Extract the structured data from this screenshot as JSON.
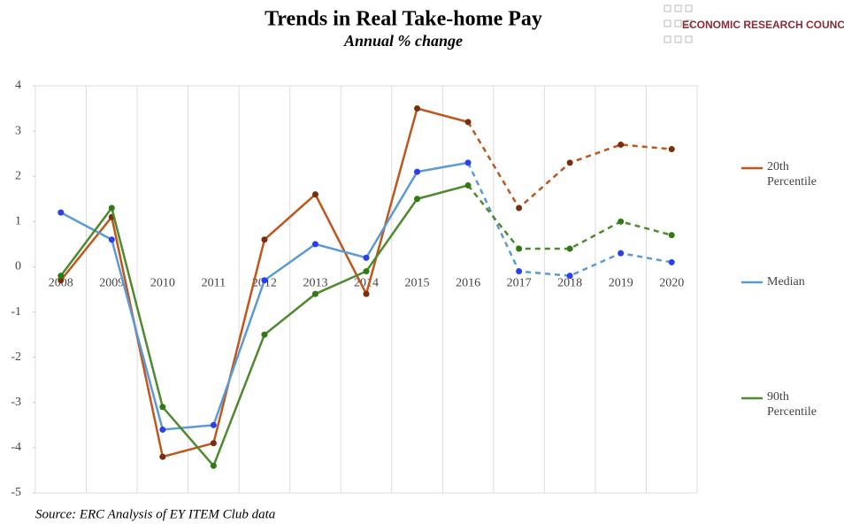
{
  "chart_data": {
    "type": "line",
    "title": "Trends in Real Take-home Pay",
    "subtitle": "Annual % change",
    "source": "Source: ERC Analysis of EY ITEM Club data",
    "logo": "ECONOMIC RESEARCH COUNCIL",
    "categories": [
      "2008",
      "2009",
      "2010",
      "2011",
      "2012",
      "2013",
      "2014",
      "2015",
      "2016",
      "2017",
      "2018",
      "2019",
      "2020"
    ],
    "dashed_from": "2016",
    "series": [
      {
        "name": "20th Percentile",
        "color": "#c0561c",
        "marker_color": "#7a2e0c",
        "values": [
          -0.3,
          1.1,
          -4.2,
          -3.9,
          0.6,
          1.6,
          -0.6,
          3.5,
          3.2,
          1.3,
          2.3,
          2.7,
          2.6
        ]
      },
      {
        "name": "Median",
        "color": "#5b9bd5",
        "marker_color": "#2a3ff0",
        "values": [
          1.2,
          0.6,
          -3.6,
          -3.5,
          -0.3,
          0.5,
          0.2,
          2.1,
          2.3,
          -0.1,
          -0.2,
          0.3,
          0.1
        ]
      },
      {
        "name": "90th Percentile",
        "color": "#4e8a2e",
        "marker_color": "#2f7a12",
        "values": [
          -0.2,
          1.3,
          -3.1,
          -4.4,
          -1.5,
          -0.6,
          -0.1,
          1.5,
          1.8,
          0.4,
          0.4,
          1.0,
          0.7
        ]
      }
    ],
    "ylim": [
      -5,
      4
    ],
    "yticks": [
      -5,
      -4,
      -3,
      -2,
      -1,
      0,
      1,
      2,
      3,
      4
    ]
  }
}
